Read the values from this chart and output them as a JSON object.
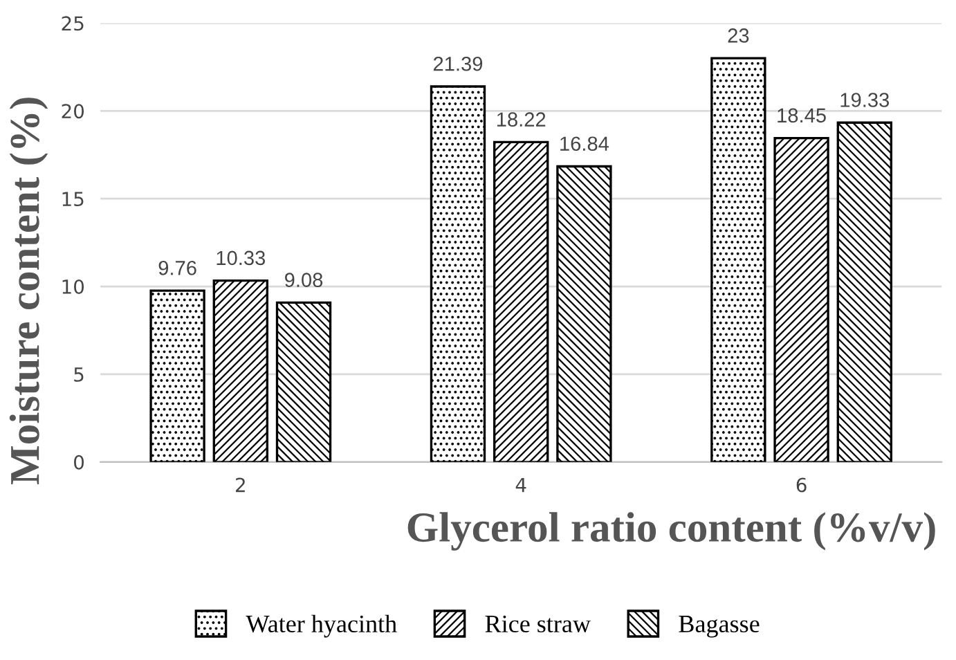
{
  "chart_data": {
    "type": "bar",
    "xlabel": "Glycerol ratio content (%v/v)",
    "ylabel": "Moisture content (%)",
    "categories": [
      "2",
      "4",
      "6"
    ],
    "series": [
      {
        "name": "Water hyacinth",
        "color": "#000000",
        "values": [
          9.76,
          21.39,
          23
        ]
      },
      {
        "name": "Rice straw",
        "color": "#000000",
        "values": [
          10.33,
          18.22,
          18.45
        ]
      },
      {
        "name": "Bagasse",
        "color": "#000000",
        "values": [
          9.08,
          16.84,
          19.33
        ]
      }
    ],
    "ylim": [
      0,
      25
    ],
    "yticks": [
      0,
      5,
      10,
      15,
      20,
      25
    ],
    "grid": "y",
    "legend": "bottom",
    "data_labels": true
  }
}
